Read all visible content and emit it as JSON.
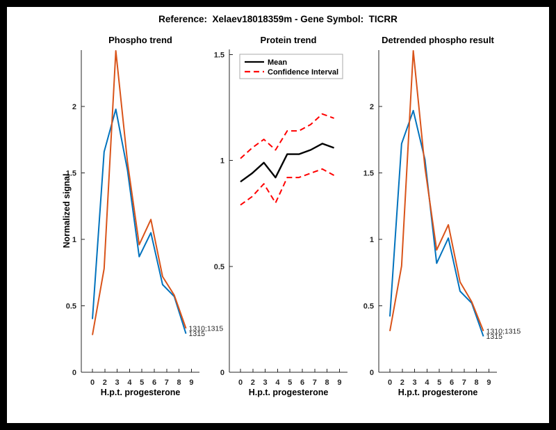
{
  "figure": {
    "suptitle": "Reference:  Xelaev18018359m - Gene Symbol:  TICRR",
    "frame_color": "#000000",
    "background_color": "#ffffff",
    "axis_color": "#262626"
  },
  "chart_data": [
    {
      "type": "line",
      "title": "Phospho trend",
      "xlabel": "H.p.t. progesterone",
      "ylabel": "Normalized signal",
      "x_values_hours": [
        0,
        2,
        3,
        4,
        5,
        6,
        7,
        8,
        9
      ],
      "x_tick_labels": [
        "0",
        "2",
        "3",
        "4",
        "5",
        "6",
        "7",
        "8",
        "9"
      ],
      "y_ticks": [
        0,
        0.5,
        1,
        1.5,
        2
      ],
      "y_tick_labels": [
        "0",
        "0.5",
        "1",
        "1.5",
        "2"
      ],
      "ylim": [
        0,
        2.425
      ],
      "grid": false,
      "series": [
        {
          "name": "phospho-site-1315",
          "color": "#0072BD",
          "style": "solid",
          "values": [
            0.4,
            1.66,
            1.98,
            1.52,
            0.87,
            1.05,
            0.66,
            0.57,
            0.29
          ],
          "end_label": "1315"
        },
        {
          "name": "phospho-site-1310-1315",
          "color": "#D95319",
          "style": "solid",
          "values": [
            0.28,
            0.78,
            2.42,
            1.58,
            0.96,
            1.15,
            0.72,
            0.58,
            0.33
          ],
          "end_label": "1310;1315"
        }
      ],
      "legend": null
    },
    {
      "type": "line",
      "title": "Protein trend",
      "xlabel": "H.p.t. progesterone",
      "ylabel": "",
      "x_values_hours": [
        0,
        2,
        3,
        4,
        5,
        6,
        7,
        8,
        9
      ],
      "x_tick_labels": [
        "0",
        "2",
        "3",
        "4",
        "5",
        "6",
        "7",
        "8",
        "9"
      ],
      "y_ticks": [
        0,
        0.5,
        1,
        1.5
      ],
      "y_tick_labels": [
        "0",
        "0.5",
        "1",
        "1.5"
      ],
      "ylim": [
        0,
        1.525
      ],
      "grid": false,
      "series": [
        {
          "name": "confidence-interval-upper",
          "color": "#FF0000",
          "style": "dashed",
          "values": [
            1.01,
            1.06,
            1.1,
            1.05,
            1.14,
            1.14,
            1.17,
            1.22,
            1.2
          ],
          "end_label": null
        },
        {
          "name": "confidence-interval-lower",
          "color": "#FF0000",
          "style": "dashed",
          "values": [
            0.79,
            0.83,
            0.89,
            0.8,
            0.92,
            0.92,
            0.94,
            0.96,
            0.93
          ],
          "end_label": null
        },
        {
          "name": "mean",
          "color": "#000000",
          "style": "solid",
          "values": [
            0.9,
            0.94,
            0.99,
            0.92,
            1.03,
            1.03,
            1.05,
            1.08,
            1.06
          ],
          "end_label": null
        }
      ],
      "legend": {
        "position": "top-left",
        "entries": [
          {
            "label": "Mean",
            "color": "#000000",
            "style": "solid"
          },
          {
            "label": "Confidence Interval",
            "color": "#FF0000",
            "style": "dashed"
          }
        ]
      }
    },
    {
      "type": "line",
      "title": "Detrended phospho result",
      "xlabel": "H.p.t. progesterone",
      "ylabel": "",
      "x_values_hours": [
        0,
        2,
        3,
        4,
        5,
        6,
        7,
        8,
        9
      ],
      "x_tick_labels": [
        "0",
        "2",
        "3",
        "4",
        "5",
        "6",
        "7",
        "8",
        "9"
      ],
      "y_ticks": [
        0,
        0.5,
        1,
        1.5,
        2
      ],
      "y_tick_labels": [
        "0",
        "0.5",
        "1",
        "1.5",
        "2"
      ],
      "ylim": [
        0,
        2.425
      ],
      "grid": false,
      "series": [
        {
          "name": "phospho-site-1315",
          "color": "#0072BD",
          "style": "solid",
          "values": [
            0.42,
            1.72,
            1.97,
            1.6,
            0.82,
            1.01,
            0.61,
            0.52,
            0.27
          ],
          "end_label": "1315"
        },
        {
          "name": "phospho-site-1310-1315",
          "color": "#D95319",
          "style": "solid",
          "values": [
            0.31,
            0.8,
            2.42,
            1.54,
            0.92,
            1.11,
            0.68,
            0.53,
            0.31
          ],
          "end_label": "1310;1315"
        }
      ],
      "legend": null
    }
  ]
}
